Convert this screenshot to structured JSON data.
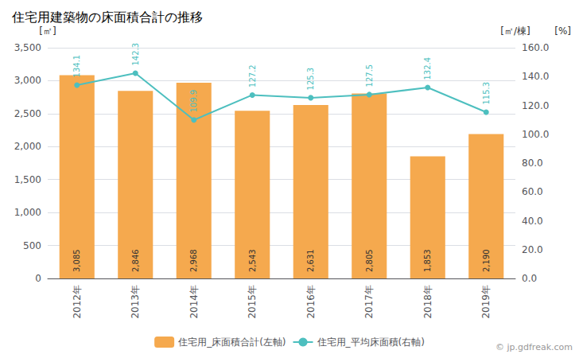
{
  "chart_data": {
    "type": "bar",
    "title": "住宅用建築物の床面積合計の推移",
    "ylabel": "[㎡]",
    "y2label": "[㎡/棟]",
    "annotations": [
      "[%]",
      "© jp.gdfreak.com"
    ],
    "categories": [
      "2012年",
      "2013年",
      "2014年",
      "2015年",
      "2016年",
      "2017年",
      "2018年",
      "2019年"
    ],
    "series": [
      {
        "name": "住宅用_床面積合計(左軸)",
        "type": "bar",
        "color": "#F5A94E",
        "values": [
          3085,
          2846,
          2968,
          2543,
          2631,
          2805,
          1853,
          2190
        ],
        "value_labels": [
          "3,085",
          "2,846",
          "2,968",
          "2,543",
          "2,631",
          "2,805",
          "1,853",
          "2,190"
        ]
      },
      {
        "name": "住宅用_平均床面積(右軸)",
        "type": "line",
        "axis": "y2",
        "color": "#4DBFBF",
        "marker": "circle",
        "values": [
          134.1,
          142.3,
          109.9,
          127.2,
          125.3,
          127.5,
          132.4,
          115.3
        ]
      }
    ],
    "ylim": [
      0,
      3500
    ],
    "yticks": [
      0,
      500,
      {
        "value": 1000,
        "label": "1,000"
      },
      {
        "value": 1500,
        "label": "1,500"
      },
      {
        "value": 2000,
        "label": "2,000"
      },
      {
        "value": 2500,
        "label": "2,500"
      },
      {
        "value": 3000,
        "label": "3,000"
      },
      {
        "value": 3500,
        "label": "3,500"
      }
    ],
    "y2lim": [
      0,
      160
    ],
    "y2ticks": [
      {
        "value": 0,
        "label": "0.0"
      },
      {
        "value": 20,
        "label": "20.0"
      },
      {
        "value": 40,
        "label": "40.0"
      },
      {
        "value": 60,
        "label": "60.0"
      },
      {
        "value": 80,
        "label": "80.0"
      },
      {
        "value": 100,
        "label": "100.0"
      },
      {
        "value": 120,
        "label": "120.0"
      },
      {
        "value": 140,
        "label": "140.0"
      },
      {
        "value": 160,
        "label": "160.0"
      }
    ],
    "grid": true,
    "legend": "bottom",
    "data_labels": true
  }
}
